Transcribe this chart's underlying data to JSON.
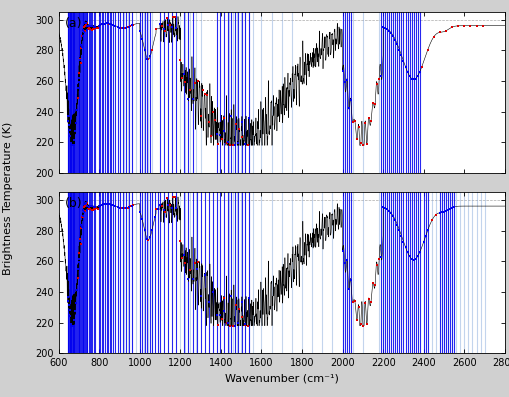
{
  "title_a": "(a)",
  "title_b": "(b)",
  "xlabel": "Wavenumber (cm⁻¹)",
  "ylabel": "Brightness Temperature (K)",
  "xlim": [
    600,
    2800
  ],
  "ylim": [
    200,
    305
  ],
  "yticks": [
    200,
    220,
    240,
    260,
    280,
    300
  ],
  "xticks": [
    600,
    800,
    1000,
    1200,
    1400,
    1600,
    1800,
    2000,
    2200,
    2400,
    2600,
    2800
  ],
  "spectrum_color": "#000000",
  "blue_bar_color": "#0000ee",
  "light_blue_color": "#88aadd",
  "red_dot_color": "#dd0000",
  "figsize": [
    5.1,
    3.97
  ],
  "dpi": 100,
  "figbg": "#d0d0d0",
  "plotbg": "#ffffff",
  "blue_bars_a": [
    645,
    648,
    651,
    654,
    657,
    660,
    663,
    666,
    669,
    672,
    675,
    678,
    681,
    684,
    690,
    694,
    698,
    702,
    706,
    710,
    714,
    718,
    722,
    726,
    730,
    734,
    738,
    742,
    748,
    754,
    760,
    766,
    772,
    778,
    800,
    806,
    814,
    820,
    828,
    836,
    844,
    852,
    860,
    870,
    880,
    892,
    904,
    916,
    930,
    946,
    962,
    1000,
    1012,
    1024,
    1038,
    1052,
    1100,
    1120,
    1140,
    1160,
    1180,
    1220,
    1240,
    1260,
    1380,
    1397,
    1416,
    1437,
    1450,
    1471,
    1483,
    1504,
    1519,
    1537,
    2000,
    2010,
    2020,
    2030,
    2040,
    2190,
    2200,
    2210,
    2220,
    2230,
    2240,
    2250,
    2260,
    2270,
    2280,
    2290,
    2300,
    2310,
    2320,
    2330,
    2340,
    2350,
    2360,
    2370,
    2380
  ],
  "red_dots_a": [
    696,
    700,
    704,
    708,
    712,
    716,
    720,
    724,
    728,
    732,
    736,
    740,
    744,
    748,
    752,
    756,
    762,
    768,
    774,
    780,
    786,
    792,
    840,
    850,
    860,
    870,
    880,
    892,
    910,
    924,
    940,
    954,
    968,
    1040,
    1060,
    1080,
    1100,
    1110,
    1125,
    1135,
    1150,
    1163,
    1175,
    1200,
    1210,
    1225,
    1240,
    1250,
    1270,
    1285,
    1300,
    1310,
    1320,
    1330,
    1340,
    1350,
    1360,
    1370,
    1385,
    1405,
    1415,
    1430,
    1445,
    1460,
    1475,
    1490,
    1505,
    1520,
    1535,
    2050,
    2060,
    2070,
    2080,
    2090,
    2100,
    2110,
    2120,
    2130,
    2140,
    2150,
    2160,
    2170,
    2180,
    2200,
    2210,
    2220,
    2230,
    2240,
    2250,
    2260,
    2270,
    2280,
    2290,
    2310,
    2320,
    2330,
    2340,
    2350,
    2360,
    2370,
    2380,
    2390,
    2420,
    2450,
    2480,
    2510,
    2540,
    2570,
    2600,
    2630,
    2660,
    2690
  ],
  "light_blue_a": [
    900,
    920,
    940,
    960,
    980,
    1000,
    1020,
    1040,
    1060,
    1200,
    1225,
    1250,
    1275,
    1300,
    1440,
    1460,
    1480,
    1500,
    1520,
    1540,
    1560,
    1600,
    1650,
    1700,
    1750,
    2000,
    2050,
    2100,
    2180,
    2200
  ],
  "blue_bars_b": [
    645,
    648,
    651,
    654,
    657,
    660,
    663,
    666,
    669,
    672,
    675,
    678,
    681,
    684,
    690,
    694,
    698,
    702,
    706,
    710,
    714,
    718,
    722,
    726,
    730,
    734,
    738,
    742,
    748,
    754,
    760,
    766,
    772,
    778,
    800,
    806,
    814,
    820,
    828,
    836,
    844,
    852,
    860,
    870,
    880,
    892,
    904,
    916,
    930,
    946,
    962,
    1000,
    1012,
    1024,
    1038,
    1052,
    1060,
    1075,
    1090,
    1100,
    1120,
    1140,
    1160,
    1180,
    1220,
    1240,
    1260,
    1280,
    1300,
    1320,
    1340,
    1360,
    1380,
    1397,
    1416,
    1437,
    1450,
    1471,
    1483,
    1504,
    1519,
    1537,
    2000,
    2010,
    2020,
    2030,
    2040,
    2190,
    2200,
    2210,
    2220,
    2230,
    2240,
    2250,
    2260,
    2270,
    2280,
    2290,
    2300,
    2310,
    2320,
    2330,
    2340,
    2350,
    2360,
    2370,
    2380,
    2400,
    2410,
    2420,
    2480,
    2490,
    2500,
    2510,
    2520,
    2530,
    2540,
    2550
  ],
  "red_dots_b": [
    696,
    700,
    704,
    708,
    712,
    716,
    720,
    724,
    728,
    732,
    736,
    740,
    744,
    748,
    752,
    756,
    762,
    768,
    774,
    780,
    786,
    792,
    840,
    850,
    860,
    870,
    880,
    892,
    910,
    924,
    940,
    954,
    968,
    1040,
    1060,
    1080,
    1100,
    1110,
    1125,
    1135,
    1150,
    1163,
    1175,
    1200,
    1210,
    1225,
    1250,
    1270,
    1285,
    1385,
    1405,
    1415,
    1430,
    1445,
    1460,
    1475,
    1490,
    1505,
    1520,
    1535,
    2050,
    2060,
    2070,
    2080,
    2090,
    2100,
    2110,
    2120,
    2130,
    2140,
    2150,
    2160,
    2170,
    2180,
    2200,
    2210,
    2220,
    2230,
    2240,
    2250,
    2260,
    2270,
    2280,
    2290,
    2420,
    2440,
    2460
  ],
  "light_blue_b": [
    900,
    920,
    940,
    960,
    980,
    1000,
    1020,
    1040,
    1060,
    1200,
    1225,
    1250,
    1275,
    1440,
    1460,
    1480,
    1500,
    1520,
    1540,
    1560,
    1600,
    1650,
    1700,
    1750,
    1800,
    1850,
    1900,
    1950,
    2000,
    2050,
    2100,
    2180,
    2200,
    2440,
    2460,
    2480,
    2500,
    2520,
    2540,
    2560,
    2580,
    2600,
    2620,
    2640,
    2660,
    2680,
    2700
  ]
}
